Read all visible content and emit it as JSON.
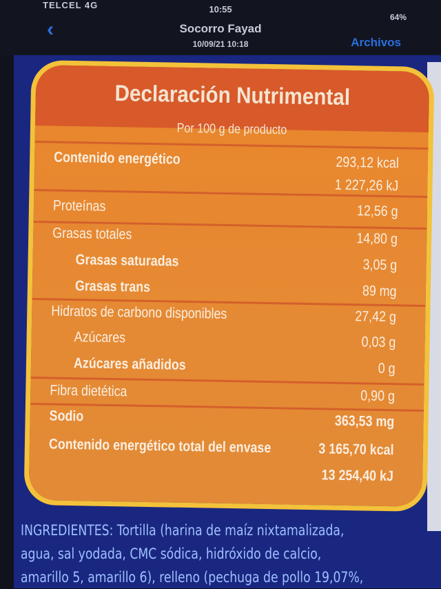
{
  "status": {
    "carrier": "TELCEL 4G",
    "time": "10:55",
    "battery": "64%"
  },
  "nav": {
    "back_icon": "chevron-left-icon",
    "title": "Socorro Fayad",
    "subtitle": "10/09/21 10:18",
    "files": "Archivos"
  },
  "label": {
    "title": "Declaración Nutrimental",
    "per": "Por 100 g de producto",
    "rows": [
      {
        "name": "Contenido energético",
        "value": "293,12 kcal"
      },
      {
        "name": "",
        "value": "1 227,26 kJ"
      },
      {
        "name": "Proteínas",
        "value": "12,56 g"
      },
      {
        "name": "Grasas totales",
        "value": "14,80 g"
      },
      {
        "name": "Grasas saturadas",
        "value": "3,05 g"
      },
      {
        "name": "Grasas trans",
        "value": "89 mg"
      },
      {
        "name": "Hidratos de carbono disponibles",
        "value": "27,42 g"
      },
      {
        "name": "Azúcares",
        "value": "0,03 g"
      },
      {
        "name": "Azúcares añadidos",
        "value": "0 g"
      },
      {
        "name": "Fibra dietética",
        "value": "0,90 g"
      },
      {
        "name": "Sodio",
        "value": "363,53 mg"
      },
      {
        "name": "Contenido energético total del envase",
        "value": "3 165,70 kcal"
      },
      {
        "name": "",
        "value": "13 254,40 kJ"
      }
    ]
  },
  "ingredients": [
    "INGREDIENTES: Tortilla (harina de maíz nixtamalizada,",
    "agua, sal yodada, CMC sódica, hidróxido de calcio,",
    "amarillo 5, amarillo 6), relleno (pechuga de pollo 19,07%,"
  ]
}
